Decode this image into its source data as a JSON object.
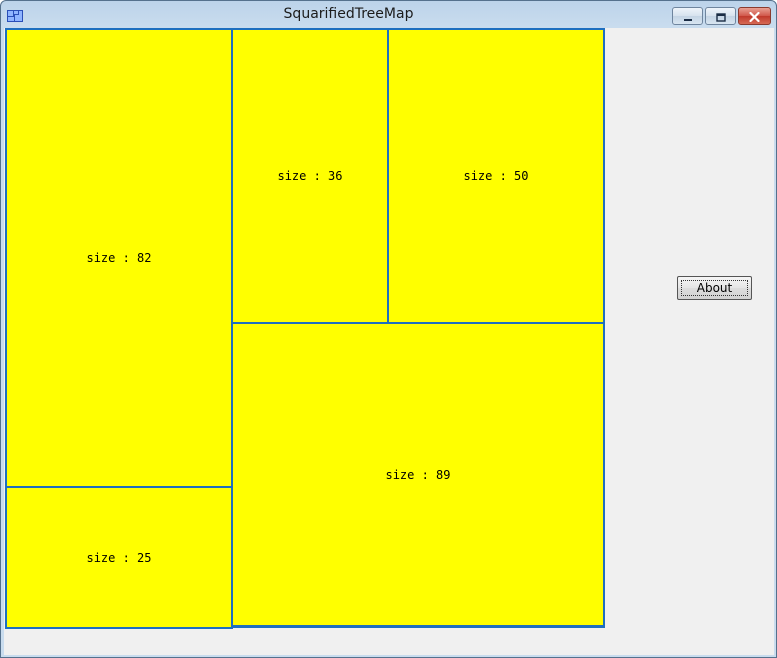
{
  "window": {
    "title": "SquarifiedTreeMap"
  },
  "treemap": {
    "fill_color": "#ffff00",
    "border_color": "#1f6fbf",
    "cells": [
      {
        "label": "size : 82",
        "size": 82
      },
      {
        "label": "size : 25",
        "size": 25
      },
      {
        "label": "size : 36",
        "size": 36
      },
      {
        "label": "size : 50",
        "size": 50
      },
      {
        "label": "size : 89",
        "size": 89
      }
    ]
  },
  "buttons": {
    "about_label": "About"
  },
  "icons": {
    "app": "app-icon",
    "minimize": "minimize-icon",
    "maximize": "maximize-icon",
    "close": "close-icon"
  }
}
